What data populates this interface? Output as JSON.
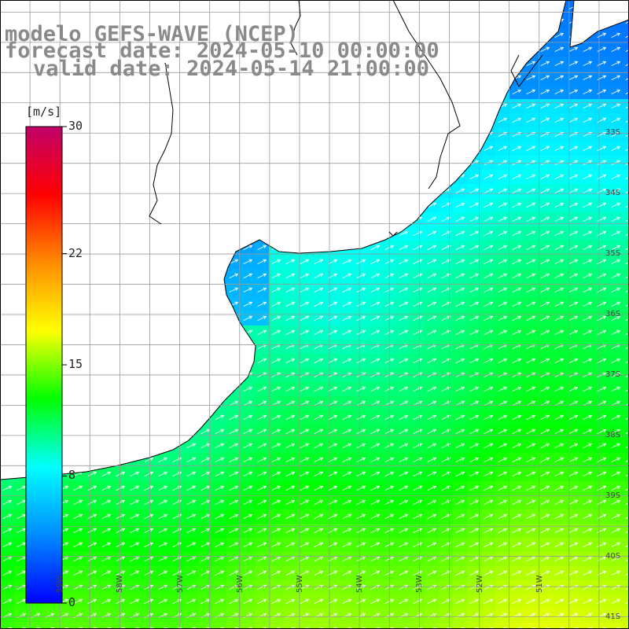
{
  "header": {
    "model": "modelo GEFS-WAVE (NCEP)",
    "forecast": "forecast date: 2024-05-10 00:00:00",
    "valid": "valid date: 2024-05-14 21:00:00"
  },
  "colorbar": {
    "unit": "[m/s]",
    "min": 0,
    "max": 30,
    "ticks": [
      {
        "value": 30,
        "label": "30"
      },
      {
        "value": 22,
        "label": "22"
      },
      {
        "value": 15,
        "label": "15"
      },
      {
        "value": 8,
        "label": "8"
      },
      {
        "value": 0,
        "label": "0"
      }
    ],
    "colors": [
      "#0000ff",
      "#008cff",
      "#00ffff",
      "#00ff00",
      "#ffff00",
      "#ff8c00",
      "#ff0000",
      "#c0006a"
    ]
  },
  "map": {
    "lon_range": [
      -60,
      -49.5
    ],
    "lat_range": [
      -41.2,
      -30.8
    ],
    "lat_labels": [
      "33S",
      "34S",
      "35S",
      "36S",
      "37S",
      "38S",
      "39S",
      "40S",
      "41S"
    ],
    "lon_labels": [
      "59W",
      "58W",
      "57W",
      "56W",
      "55W",
      "54W",
      "53W",
      "52W",
      "51W"
    ],
    "land_color": "#ffffff",
    "grid_color": "#999999",
    "wind_direction": "toward north-east",
    "wind_speed_range_ms": [
      3,
      18
    ]
  }
}
